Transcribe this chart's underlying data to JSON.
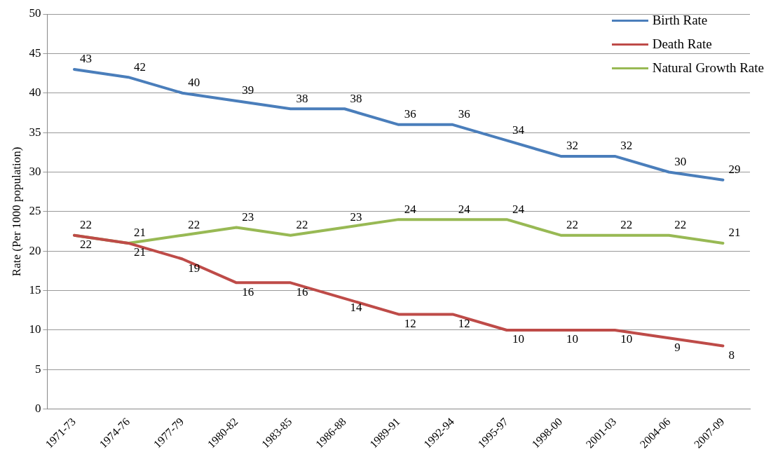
{
  "chart_data": {
    "type": "line",
    "ylabel": "Rate (Per 1000 population)",
    "categories": [
      "1971-73",
      "1974-76",
      "1977-79",
      "1980-82",
      "1983-85",
      "1986-88",
      "1989-91",
      "1992-94",
      "1995-97",
      "1998-00",
      "2001-03",
      "2004-06",
      "2007-09"
    ],
    "series": [
      {
        "name": "Birth Rate",
        "color": "#4a7ebb",
        "values": [
          43,
          42,
          40,
          39,
          38,
          38,
          36,
          36,
          34,
          32,
          32,
          30,
          29
        ]
      },
      {
        "name": "Death Rate",
        "color": "#be4b48",
        "values": [
          22,
          21,
          19,
          16,
          16,
          14,
          12,
          12,
          10,
          10,
          10,
          9,
          8
        ]
      },
      {
        "name": "Natural Growth Rate",
        "color": "#98b954",
        "values": [
          22,
          21,
          22,
          23,
          22,
          23,
          24,
          24,
          24,
          22,
          22,
          22,
          21
        ]
      }
    ],
    "ylim": [
      0,
      50
    ],
    "yticks": [
      0,
      5,
      10,
      15,
      20,
      25,
      30,
      35,
      40,
      45,
      50
    ],
    "grid": "y",
    "legend": "top right",
    "marker": "none",
    "line_style": "solid",
    "data_labels": true
  }
}
